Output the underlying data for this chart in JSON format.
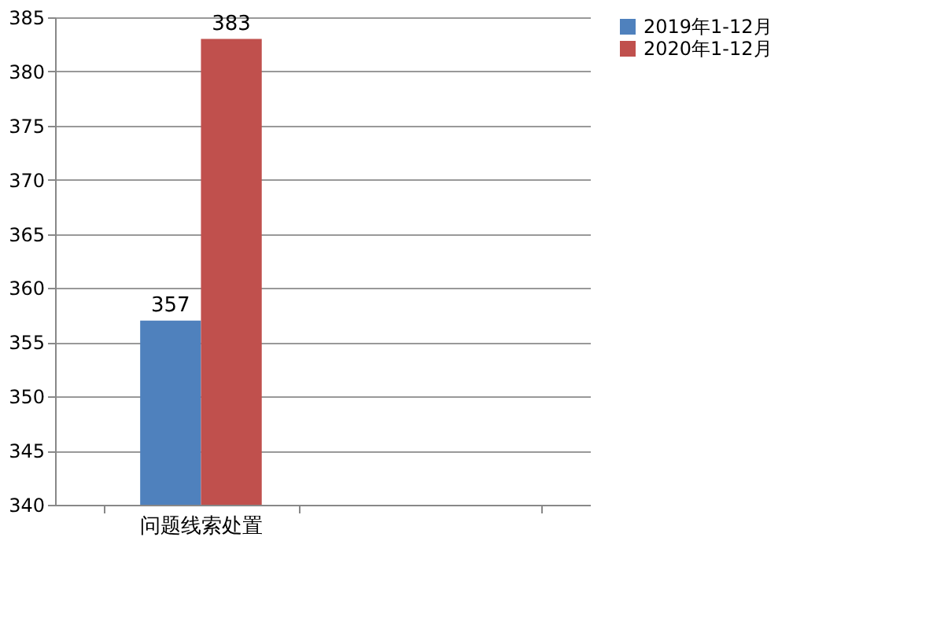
{
  "chart_data": {
    "type": "bar",
    "categories": [
      "问题线索处置",
      null
    ],
    "series": [
      {
        "name": "2019年1-12月",
        "color": "#4f81bd",
        "values": [
          357,
          null
        ]
      },
      {
        "name": "2020年1-12月",
        "color": "#c0504d",
        "values": [
          383,
          null
        ]
      }
    ],
    "ylim": [
      340,
      385
    ],
    "yticks": [
      340,
      345,
      350,
      355,
      360,
      365,
      370,
      375,
      380,
      385
    ],
    "grid": "y",
    "legend": "right",
    "data_labels": true
  }
}
